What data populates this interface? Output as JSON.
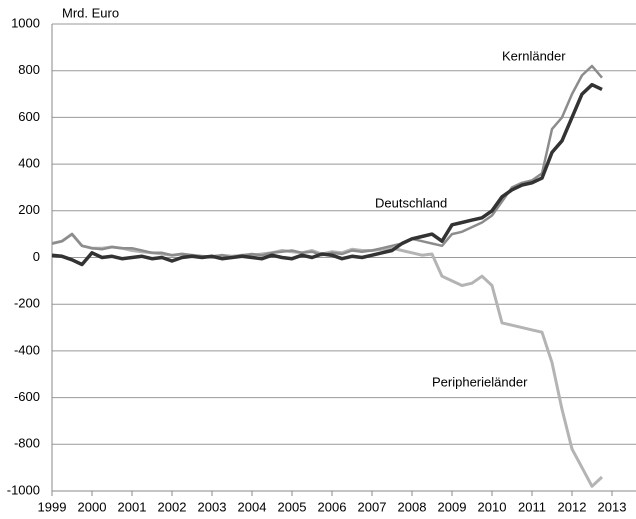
{
  "chart_data": {
    "type": "line",
    "y_label": "Mrd. Euro",
    "x": [
      1999,
      1999.25,
      1999.5,
      1999.75,
      2000,
      2000.25,
      2000.5,
      2000.75,
      2001,
      2001.25,
      2001.5,
      2001.75,
      2002,
      2002.25,
      2002.5,
      2002.75,
      2003,
      2003.25,
      2003.5,
      2003.75,
      2004,
      2004.25,
      2004.5,
      2004.75,
      2005,
      2005.25,
      2005.5,
      2005.75,
      2006,
      2006.25,
      2006.5,
      2006.75,
      2007,
      2007.25,
      2007.5,
      2007.75,
      2008,
      2008.25,
      2008.5,
      2008.75,
      2009,
      2009.25,
      2009.5,
      2009.75,
      2010,
      2010.25,
      2010.5,
      2010.75,
      2011,
      2011.25,
      2011.5,
      2011.75,
      2012,
      2012.25,
      2012.5,
      2012.75
    ],
    "series": [
      {
        "name": "Peripherieländer",
        "color": "#b4b4b4",
        "width": 3,
        "values": [
          60,
          70,
          100,
          50,
          40,
          40,
          45,
          40,
          30,
          25,
          20,
          15,
          10,
          15,
          10,
          5,
          0,
          10,
          5,
          10,
          10,
          15,
          20,
          30,
          25,
          20,
          30,
          15,
          25,
          20,
          35,
          30,
          30,
          35,
          40,
          30,
          20,
          10,
          15,
          -80,
          -100,
          -120,
          -110,
          -80,
          -120,
          -280,
          -290,
          -300,
          -310,
          -320,
          -450,
          -650,
          -820,
          -900,
          -980,
          -940
        ]
      },
      {
        "name": "Kernländer",
        "color": "#8c8c8c",
        "width": 2.5,
        "values": [
          60,
          70,
          100,
          50,
          40,
          35,
          45,
          40,
          40,
          30,
          20,
          20,
          10,
          15,
          10,
          5,
          5,
          10,
          0,
          10,
          15,
          10,
          20,
          25,
          30,
          20,
          25,
          10,
          20,
          15,
          30,
          25,
          30,
          40,
          50,
          60,
          80,
          70,
          60,
          50,
          100,
          110,
          130,
          150,
          180,
          240,
          300,
          320,
          330,
          360,
          550,
          600,
          700,
          780,
          820,
          770
        ]
      },
      {
        "name": "Deutschland",
        "color": "#333333",
        "width": 3.5,
        "values": [
          10,
          5,
          -10,
          -30,
          20,
          0,
          5,
          -5,
          0,
          5,
          -5,
          0,
          -15,
          0,
          5,
          0,
          5,
          -5,
          0,
          5,
          0,
          -5,
          10,
          0,
          -5,
          10,
          0,
          15,
          10,
          -5,
          5,
          0,
          10,
          20,
          30,
          60,
          80,
          90,
          100,
          70,
          140,
          150,
          160,
          170,
          200,
          260,
          290,
          310,
          320,
          340,
          450,
          500,
          600,
          700,
          740,
          720
        ]
      }
    ],
    "xlim": [
      1999,
      2013.6
    ],
    "xticks": [
      1999,
      2000,
      2001,
      2002,
      2003,
      2004,
      2005,
      2006,
      2007,
      2008,
      2009,
      2010,
      2011,
      2012,
      2013
    ],
    "ylim": [
      -1000,
      1000
    ],
    "yticks": [
      -1000,
      -800,
      -600,
      -400,
      -200,
      0,
      200,
      400,
      600,
      800,
      1000
    ],
    "grid": true
  }
}
